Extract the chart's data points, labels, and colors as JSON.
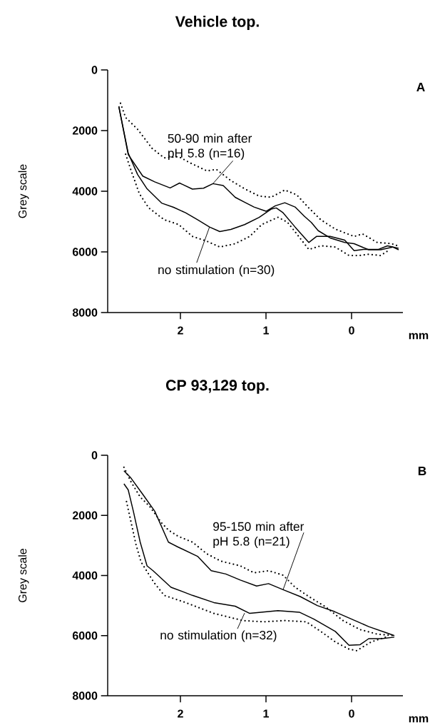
{
  "chart_data": [
    {
      "type": "line",
      "title": "Vehicle top.",
      "xlabel": "mm",
      "ylabel": "Grey scale",
      "xlim": [
        2.85,
        -0.6
      ],
      "ylim": [
        8000,
        0
      ],
      "xticks": [
        2,
        1,
        0
      ],
      "yticks": [
        0,
        2000,
        4000,
        6000,
        8000
      ],
      "annotations": [
        "A",
        {
          "text": "50-90 min after pH 5.8 (n=16)",
          "x": 1.62,
          "y": 3750
        },
        {
          "text": "no stimulation (n=30)",
          "x": 1.66,
          "y": 5180
        }
      ],
      "series": [
        {
          "color": "#000000",
          "line_style": "solid",
          "x": [
            2.72,
            2.61,
            2.44,
            2.3,
            2.12,
            2.01,
            1.86,
            1.73,
            1.62,
            1.5,
            1.36,
            1.25,
            1.14,
            1.0,
            0.89,
            0.78,
            0.66,
            0.55,
            0.47,
            0.39,
            0.25,
            0.08,
            -0.03,
            -0.2,
            -0.34,
            -0.48,
            -0.55
          ],
          "values": [
            1200,
            2790,
            3500,
            3690,
            3890,
            3730,
            3930,
            3900,
            3750,
            3810,
            4200,
            4360,
            4520,
            4660,
            4480,
            4380,
            4520,
            4830,
            5030,
            5300,
            5540,
            5690,
            5730,
            5930,
            5930,
            5840,
            5930
          ]
        },
        {
          "color": "#000000",
          "line_style": "solid",
          "x": [
            2.72,
            2.61,
            2.5,
            2.39,
            2.22,
            2.08,
            1.94,
            1.8,
            1.66,
            1.54,
            1.41,
            1.25,
            1.08,
            0.94,
            0.88,
            0.8,
            0.66,
            0.5,
            0.41,
            0.25,
            0.08,
            -0.03,
            -0.14,
            -0.31,
            -0.42,
            -0.55
          ],
          "values": [
            1200,
            2745,
            3450,
            3920,
            4390,
            4530,
            4710,
            4940,
            5180,
            5330,
            5260,
            5100,
            4860,
            4590,
            4550,
            4710,
            5180,
            5690,
            5490,
            5490,
            5610,
            5960,
            5920,
            5920,
            5800,
            5880
          ]
        },
        {
          "color": "#000000",
          "line_style": "dotted",
          "x": [
            2.7,
            2.64,
            2.5,
            2.33,
            2.19,
            2.02,
            1.89,
            1.69,
            1.58,
            1.41,
            1.25,
            1.08,
            0.94,
            0.78,
            0.64,
            0.5,
            0.36,
            0.19,
            -0.03,
            -0.13,
            -0.3,
            -0.47,
            -0.54
          ],
          "values": [
            1100,
            1570,
            1960,
            2590,
            2900,
            2860,
            3060,
            3330,
            3280,
            3650,
            3920,
            4160,
            4200,
            3960,
            4120,
            4550,
            4940,
            5250,
            5490,
            5410,
            5690,
            5730,
            5800
          ]
        },
        {
          "color": "#000000",
          "line_style": "dotted",
          "x": [
            2.64,
            2.58,
            2.48,
            2.37,
            2.19,
            2.02,
            1.86,
            1.69,
            1.54,
            1.36,
            1.19,
            1.05,
            0.86,
            0.75,
            0.64,
            0.5,
            0.36,
            0.19,
            0.03,
            -0.09,
            -0.2,
            -0.34,
            -0.45
          ],
          "values": [
            2780,
            3290,
            4080,
            4550,
            4940,
            5100,
            5490,
            5650,
            5840,
            5730,
            5490,
            5100,
            4860,
            5020,
            5410,
            5920,
            5800,
            5840,
            6120,
            6120,
            6080,
            6120,
            5920
          ]
        }
      ]
    },
    {
      "type": "line",
      "title": "CP 93,129 top.",
      "xlabel": "mm",
      "ylabel": "Grey scale",
      "xlim": [
        2.85,
        -0.6
      ],
      "ylim": [
        8000,
        0
      ],
      "xticks": [
        2,
        1,
        0
      ],
      "yticks": [
        0,
        2000,
        4000,
        6000,
        8000
      ],
      "annotations": [
        "B",
        {
          "text": "95-150 min after pH 5.8 (n=21)",
          "x": 0.8,
          "y": 4470
        },
        {
          "text": "no stimulation (n=32)",
          "x": 1.25,
          "y": 5250
        }
      ],
      "series": [
        {
          "color": "#000000",
          "line_style": "solid",
          "x": [
            2.66,
            2.58,
            2.44,
            2.3,
            2.14,
            2.03,
            1.8,
            1.64,
            1.47,
            1.3,
            1.11,
            0.97,
            0.8,
            0.6,
            0.4,
            0.2,
            0.0,
            -0.2,
            -0.4,
            -0.5
          ],
          "values": [
            515,
            750,
            1300,
            1860,
            2890,
            3050,
            3360,
            3840,
            3950,
            4150,
            4350,
            4270,
            4470,
            4700,
            5000,
            5200,
            5450,
            5700,
            5900,
            6000
          ]
        },
        {
          "color": "#000000",
          "line_style": "solid",
          "x": [
            2.66,
            2.61,
            2.55,
            2.47,
            2.39,
            2.32,
            2.11,
            1.86,
            1.61,
            1.36,
            1.19,
            0.86,
            0.61,
            0.44,
            0.19,
            0.03,
            -0.1,
            -0.2,
            -0.35,
            -0.5
          ],
          "values": [
            950,
            1150,
            1860,
            2890,
            3680,
            3840,
            4390,
            4660,
            4900,
            5020,
            5260,
            5170,
            5220,
            5450,
            5860,
            6320,
            6300,
            6100,
            6100,
            6050
          ]
        },
        {
          "color": "#000000",
          "line_style": "dotted",
          "x": [
            2.66,
            2.58,
            2.47,
            2.36,
            2.22,
            2.14,
            2.03,
            1.86,
            1.69,
            1.53,
            1.3,
            1.14,
            0.97,
            0.8,
            0.66,
            0.5,
            0.3,
            0.1,
            -0.1,
            -0.3,
            -0.5
          ],
          "values": [
            400,
            870,
            1390,
            1700,
            2250,
            2490,
            2690,
            2890,
            3280,
            3520,
            3680,
            3910,
            3840,
            3990,
            4390,
            4700,
            5050,
            5500,
            5800,
            5950,
            6000
          ]
        },
        {
          "color": "#000000",
          "line_style": "dotted",
          "x": [
            2.63,
            2.52,
            2.46,
            2.31,
            2.19,
            1.94,
            1.61,
            1.27,
            1.03,
            0.78,
            0.53,
            0.36,
            0.19,
            0.03,
            -0.06,
            -0.23,
            -0.43
          ],
          "values": [
            1540,
            2960,
            3550,
            4230,
            4660,
            4900,
            5260,
            5500,
            5540,
            5500,
            5540,
            5860,
            6210,
            6450,
            6500,
            6210,
            6020
          ]
        }
      ]
    }
  ]
}
